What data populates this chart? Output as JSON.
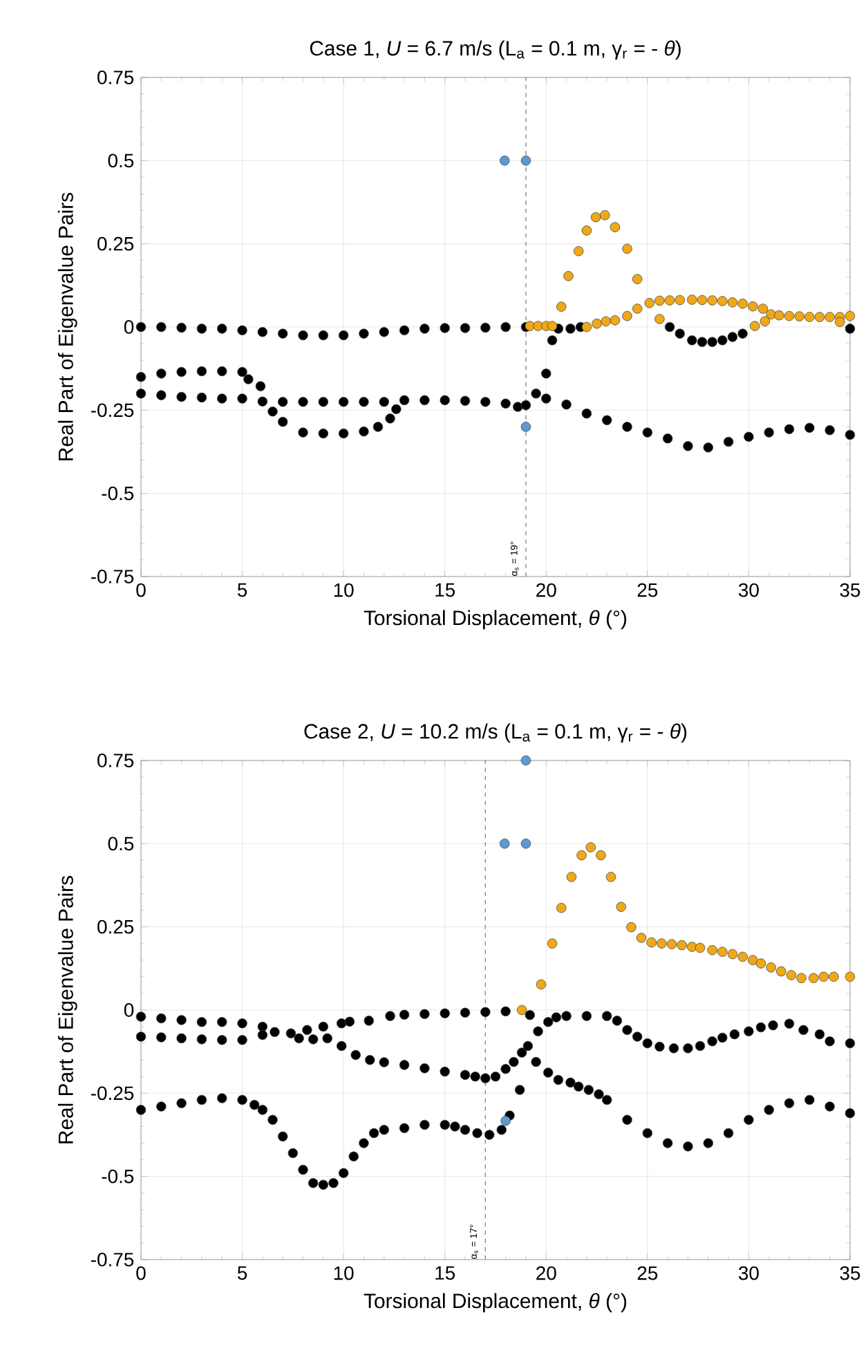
{
  "chart_data": [
    {
      "type": "scatter",
      "title": "Case 1, *U* = 6.7 m/s (L$_{a}$ = 0.1 m, γ$_{r}$ = - *θ*)",
      "xlabel": "Torsional Displacement, *θ* (°)",
      "ylabel": "Real Part of Eigenvalue Pairs",
      "xlim": [
        0,
        35
      ],
      "ylim": [
        -0.75,
        0.75
      ],
      "xticks": [
        0,
        5,
        10,
        15,
        20,
        25,
        30,
        35
      ],
      "yticks": [
        -0.75,
        -0.5,
        -0.25,
        0,
        0.25,
        0.5,
        0.75
      ],
      "grid": true,
      "marker": "circle",
      "ref_lines": [
        {
          "axis": "x",
          "value": 19,
          "label": "α$_{s}$ = 19°",
          "color": "#888888",
          "line_style": "dashed"
        }
      ],
      "series": [
        {
          "color": "#000000",
          "x": [
            0,
            1,
            2,
            3,
            4,
            5,
            6,
            7,
            8,
            9,
            10,
            11,
            12,
            13,
            14,
            15,
            16,
            17,
            18,
            19,
            20.0,
            20.3,
            20.6,
            21.2,
            21.7,
            26.1,
            26.6,
            27.2,
            27.7,
            28.2,
            28.7,
            29.2,
            29.7,
            35,
            0,
            1,
            2,
            3,
            4,
            5,
            5.3,
            5.9,
            6.5,
            7,
            8,
            9,
            10,
            11,
            11.7,
            12.3,
            12.6,
            0,
            1,
            2,
            3,
            4,
            5,
            6,
            7,
            8,
            9,
            10,
            11,
            12,
            13,
            14,
            15,
            16,
            17,
            18,
            18.6,
            19,
            19.5,
            20,
            21,
            22,
            23,
            24,
            25,
            26,
            27,
            28,
            29,
            30,
            31,
            32,
            33,
            34,
            35
          ],
          "values": [
            0,
            0,
            -0.002,
            -0.005,
            -0.005,
            -0.01,
            -0.015,
            -0.02,
            -0.025,
            -0.025,
            -0.025,
            -0.02,
            -0.015,
            -0.01,
            -0.005,
            -0.003,
            -0.003,
            -0.002,
            0,
            0,
            -0.14,
            -0.04,
            -0.005,
            -0.005,
            0,
            0,
            -0.02,
            -0.04,
            -0.045,
            -0.045,
            -0.04,
            -0.03,
            -0.02,
            -0.005,
            -0.15,
            -0.14,
            -0.135,
            -0.133,
            -0.133,
            -0.135,
            -0.157,
            -0.178,
            -0.254,
            -0.285,
            -0.317,
            -0.32,
            -0.32,
            -0.314,
            -0.3,
            -0.275,
            -0.247,
            -0.2,
            -0.205,
            -0.21,
            -0.212,
            -0.215,
            -0.215,
            -0.224,
            -0.225,
            -0.225,
            -0.225,
            -0.225,
            -0.225,
            -0.225,
            -0.22,
            -0.22,
            -0.22,
            -0.222,
            -0.225,
            -0.23,
            -0.24,
            -0.235,
            -0.2,
            -0.215,
            -0.233,
            -0.26,
            -0.28,
            -0.3,
            -0.317,
            -0.335,
            -0.358,
            -0.362,
            -0.345,
            -0.33,
            -0.317,
            -0.307,
            -0.303,
            -0.31,
            -0.324
          ]
        },
        {
          "color": "#f0a818",
          "x": [
            19.2,
            19.6,
            20.0,
            20.3,
            20.75,
            21.1,
            21.6,
            22,
            22.45,
            22.9,
            23.4,
            24,
            24.5,
            25.6,
            22,
            22.5,
            22.95,
            23.4,
            24,
            24.5,
            25.1,
            25.6,
            26.1,
            26.6,
            27.2,
            27.7,
            28.2,
            28.7,
            29.2,
            29.7,
            30.2,
            30.7,
            31.1,
            31.5,
            32,
            32.5,
            33,
            33.5,
            34,
            34.5,
            35,
            30.3,
            30.8,
            34.5
          ],
          "values": [
            0.003,
            0.003,
            0.003,
            0.003,
            0.061,
            0.153,
            0.228,
            0.29,
            0.33,
            0.336,
            0.3,
            0.235,
            0.144,
            0.024,
            0,
            0.01,
            0.017,
            0.02,
            0.033,
            0.055,
            0.072,
            0.079,
            0.08,
            0.081,
            0.082,
            0.081,
            0.08,
            0.078,
            0.074,
            0.07,
            0.062,
            0.055,
            0.038,
            0.035,
            0.033,
            0.032,
            0.03,
            0.03,
            0.03,
            0.03,
            0.033,
            0.003,
            0.017,
            0.015
          ]
        },
        {
          "color": "#5b9bd5",
          "x": [
            17.95,
            19,
            19
          ],
          "values": [
            0.5,
            0.5,
            -0.3
          ]
        }
      ]
    },
    {
      "type": "scatter",
      "title": "Case 2, *U* = 10.2 m/s (L$_{a}$ = 0.1 m, γ$_{r}$ = - *θ*)",
      "xlabel": "Torsional Displacement, *θ* (°)",
      "ylabel": "Real Part of Eigenvalue Pairs",
      "xlim": [
        0,
        35
      ],
      "ylim": [
        -0.75,
        0.75
      ],
      "xticks": [
        0,
        5,
        10,
        15,
        20,
        25,
        30,
        35
      ],
      "yticks": [
        -0.75,
        -0.5,
        -0.25,
        0,
        0.25,
        0.5,
        0.75
      ],
      "grid": true,
      "marker": "circle",
      "ref_lines": [
        {
          "axis": "x",
          "value": 17,
          "label": "α$_{s}$ = 17°",
          "color": "#888888",
          "line_style": "dashed"
        }
      ],
      "series": [
        {
          "color": "#000000",
          "x": [
            0,
            1,
            2,
            3,
            4,
            5,
            6,
            6.6,
            7.4,
            8.2,
            9,
            9.9,
            10.3,
            11.25,
            12.3,
            13,
            14,
            15,
            16,
            17,
            18,
            19.2,
            0,
            1,
            2,
            3,
            4,
            5,
            6,
            7.8,
            8.5,
            9.2,
            9.9,
            10.6,
            11.3,
            12,
            13,
            14,
            15,
            16,
            16.5,
            17,
            17.5,
            18,
            18.4,
            18.8,
            19.1,
            19.6,
            20.1,
            20.5,
            21,
            22,
            23,
            23.5,
            24,
            24.5,
            25,
            25.6,
            26.3,
            27,
            27.6,
            28.2,
            28.7,
            29.3,
            30,
            30.6,
            31.2,
            32,
            32.7,
            33.5,
            34,
            35,
            18.7,
            19.5,
            20.1,
            20.6,
            21.2,
            21.6,
            22.1,
            22.6,
            23,
            24,
            25,
            26,
            27,
            28,
            29,
            30,
            31,
            32,
            33,
            34,
            35,
            0,
            1,
            2,
            3,
            4,
            5,
            5.6,
            6,
            6.5,
            7,
            7.5,
            8,
            8.5,
            9,
            9.5,
            10,
            10.5,
            11,
            11.5,
            12,
            13,
            14,
            15,
            15.5,
            16,
            16.6,
            17.2,
            17.8,
            18.2
          ],
          "values": [
            -0.02,
            -0.025,
            -0.03,
            -0.036,
            -0.036,
            -0.04,
            -0.05,
            -0.066,
            -0.07,
            -0.06,
            -0.05,
            -0.04,
            -0.035,
            -0.032,
            -0.018,
            -0.014,
            -0.012,
            -0.01,
            -0.008,
            -0.006,
            -0.004,
            -0.015,
            -0.08,
            -0.082,
            -0.085,
            -0.088,
            -0.09,
            -0.09,
            -0.075,
            -0.085,
            -0.088,
            -0.085,
            -0.108,
            -0.135,
            -0.15,
            -0.157,
            -0.165,
            -0.175,
            -0.185,
            -0.195,
            -0.2,
            -0.205,
            -0.2,
            -0.177,
            -0.156,
            -0.128,
            -0.108,
            -0.064,
            -0.036,
            -0.022,
            -0.018,
            -0.018,
            -0.018,
            -0.032,
            -0.06,
            -0.08,
            -0.1,
            -0.11,
            -0.115,
            -0.115,
            -0.108,
            -0.094,
            -0.083,
            -0.073,
            -0.064,
            -0.052,
            -0.046,
            -0.041,
            -0.06,
            -0.073,
            -0.094,
            -0.1,
            -0.24,
            -0.156,
            -0.188,
            -0.21,
            -0.218,
            -0.23,
            -0.24,
            -0.253,
            -0.27,
            -0.33,
            -0.37,
            -0.4,
            -0.41,
            -0.4,
            -0.37,
            -0.33,
            -0.3,
            -0.28,
            -0.27,
            -0.29,
            -0.31,
            -0.3,
            -0.29,
            -0.28,
            -0.27,
            -0.265,
            -0.27,
            -0.285,
            -0.3,
            -0.33,
            -0.38,
            -0.43,
            -0.48,
            -0.52,
            -0.525,
            -0.52,
            -0.49,
            -0.44,
            -0.4,
            -0.37,
            -0.36,
            -0.355,
            -0.345,
            -0.345,
            -0.35,
            -0.36,
            -0.37,
            -0.375,
            -0.36,
            -0.317
          ]
        },
        {
          "color": "#f0a818",
          "x": [
            18.8,
            19.75,
            20.3,
            20.75,
            21.25,
            21.75,
            22.2,
            22.7,
            23.2,
            23.7,
            24.2,
            24.7,
            25.2,
            25.7,
            26.2,
            26.7,
            27.2,
            27.6,
            28.2,
            28.7,
            29.2,
            29.7,
            30.2,
            30.6,
            31.1,
            31.6,
            32.1,
            32.6,
            33.2,
            33.7,
            34.2,
            35
          ],
          "values": [
            0.0,
            0.077,
            0.2,
            0.307,
            0.4,
            0.465,
            0.489,
            0.465,
            0.4,
            0.31,
            0.249,
            0.217,
            0.203,
            0.2,
            0.198,
            0.195,
            0.19,
            0.187,
            0.18,
            0.175,
            0.168,
            0.16,
            0.15,
            0.14,
            0.128,
            0.116,
            0.105,
            0.096,
            0.096,
            0.1,
            0.1,
            0.1
          ]
        },
        {
          "color": "#5b9bd5",
          "x": [
            19,
            17.95,
            19,
            18
          ],
          "values": [
            0.75,
            0.5,
            0.5,
            -0.333
          ]
        }
      ]
    }
  ]
}
